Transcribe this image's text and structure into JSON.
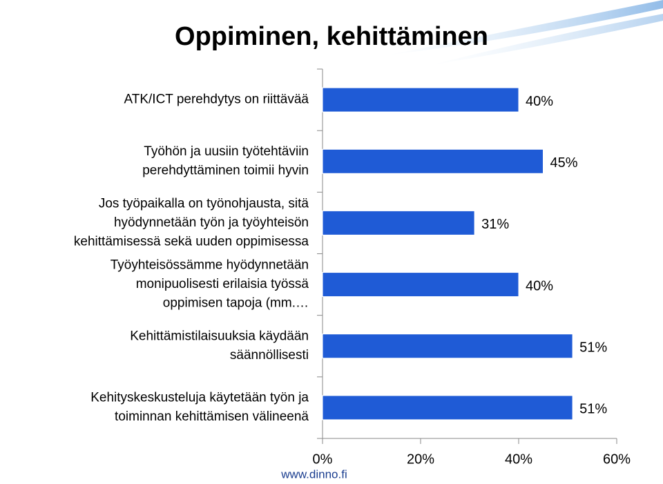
{
  "chart_data": {
    "type": "bar",
    "orientation": "horizontal",
    "title": "Oppiminen, kehittäminen",
    "footer": "www.dinno.fi",
    "categories": [
      [
        "ATK/ICT perehdytys on riittävää"
      ],
      [
        "Työhön ja uusiin työtehtäviin",
        "perehdyttäminen toimii hyvin"
      ],
      [
        "Jos työpaikalla on työnohjausta, sitä",
        "hyödynnetään työn ja työyhteisön",
        "kehittämisessä sekä uuden oppimisessa"
      ],
      [
        "Työyhteisössämme hyödynnetään",
        "monipuolisesti erilaisia työssä",
        "oppimisen tapoja (mm.…"
      ],
      [
        "Kehittämistilaisuuksia käydään",
        "säännöllisesti"
      ],
      [
        "Kehityskeskusteluja käytetään työn ja",
        "toiminnan kehittämisen välineenä"
      ]
    ],
    "values": [
      40,
      45,
      31,
      40,
      51,
      51
    ],
    "value_labels": [
      "40%",
      "45%",
      "31%",
      "40%",
      "51%",
      "51%"
    ],
    "color": "#1f5bd6",
    "xlim": [
      0,
      60
    ],
    "xticks": [
      {
        "value": 0,
        "label": "0%"
      },
      {
        "value": 20,
        "label": "20%"
      },
      {
        "value": 40,
        "label": "40%"
      },
      {
        "value": 60,
        "label": "60%"
      }
    ]
  }
}
